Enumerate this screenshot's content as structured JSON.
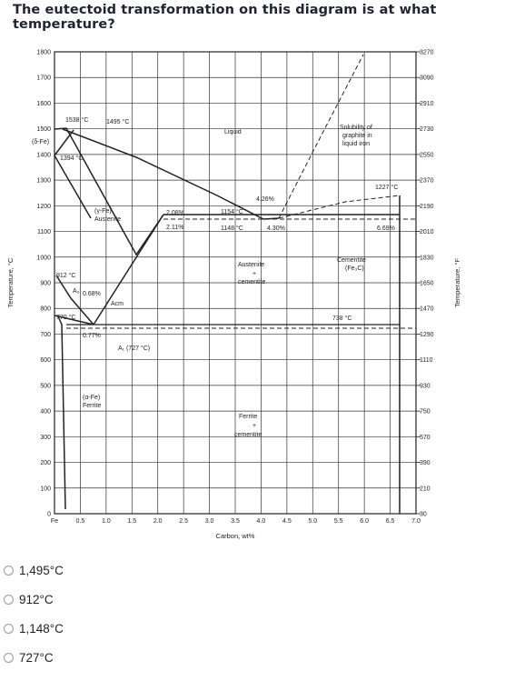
{
  "question": "The eutectoid transformation on this diagram is at what temperature?",
  "diagram": {
    "y_left": [
      "1800",
      "1700",
      "1600",
      "1500",
      "1400",
      "1300",
      "1200",
      "1100",
      "1000",
      "900",
      "800",
      "700",
      "600",
      "500",
      "400",
      "300",
      "200",
      "100",
      "0"
    ],
    "y_right": [
      "3270",
      "3090",
      "2910",
      "2730",
      "2550",
      "2370",
      "2190",
      "2010",
      "1830",
      "1650",
      "1470",
      "1290",
      "1110",
      "930",
      "750",
      "570",
      "390",
      "210",
      "30"
    ],
    "x_ticks": [
      "Fe",
      "0.5",
      "1.0",
      "1.5",
      "2.0",
      "2.5",
      "3.0",
      "3.5",
      "4.0",
      "4.5",
      "5.0",
      "5.5",
      "6.0",
      "6.5",
      "7.0"
    ],
    "xlabel": "Carbon, wt%",
    "ylabel_left": "Temperature, °C",
    "ylabel_right": "Temperature, °F",
    "labels": {
      "t1538": "1538 °C",
      "t1495": "1495 °C",
      "delta_fe": "(δ-Fe)",
      "t1394": "1394 °C",
      "liquid": "Liquid",
      "solubility1": "Solubility of",
      "solubility2": "graphite in",
      "solubility3": "liquid iron",
      "t1227": "1227 °C",
      "p426": "4.26%",
      "gamma1": "(γ-Fe)",
      "gamma2": "Austenite",
      "p208": "2.08%",
      "p211": "2.11%",
      "t1154": "1154 °C",
      "t1148": "1148 °C",
      "p430": "4.30%",
      "p669": "6.69%",
      "aust_cem1": "Austenite",
      "aust_cem2": "+",
      "aust_cem3": "cementite",
      "cementite1": "Cementite",
      "cementite2": "(Fe₃C)",
      "t912": "912 °C",
      "a3": "A₃",
      "p068": "0.68%",
      "acm": "Acm",
      "t770": "770 °C",
      "t738": "738 °C",
      "p077": "0.77%",
      "a1": "A₁ (727 °C)",
      "alpha1": "(α-Fe)",
      "alpha2": "Ferrite",
      "fer_cem1": "Ferrite",
      "fer_cem2": "+",
      "fer_cem3": "cementite"
    }
  },
  "options": [
    {
      "label": "1,495°C"
    },
    {
      "label": "912°C"
    },
    {
      "label": "1,148°C"
    },
    {
      "label": "727°C"
    }
  ]
}
